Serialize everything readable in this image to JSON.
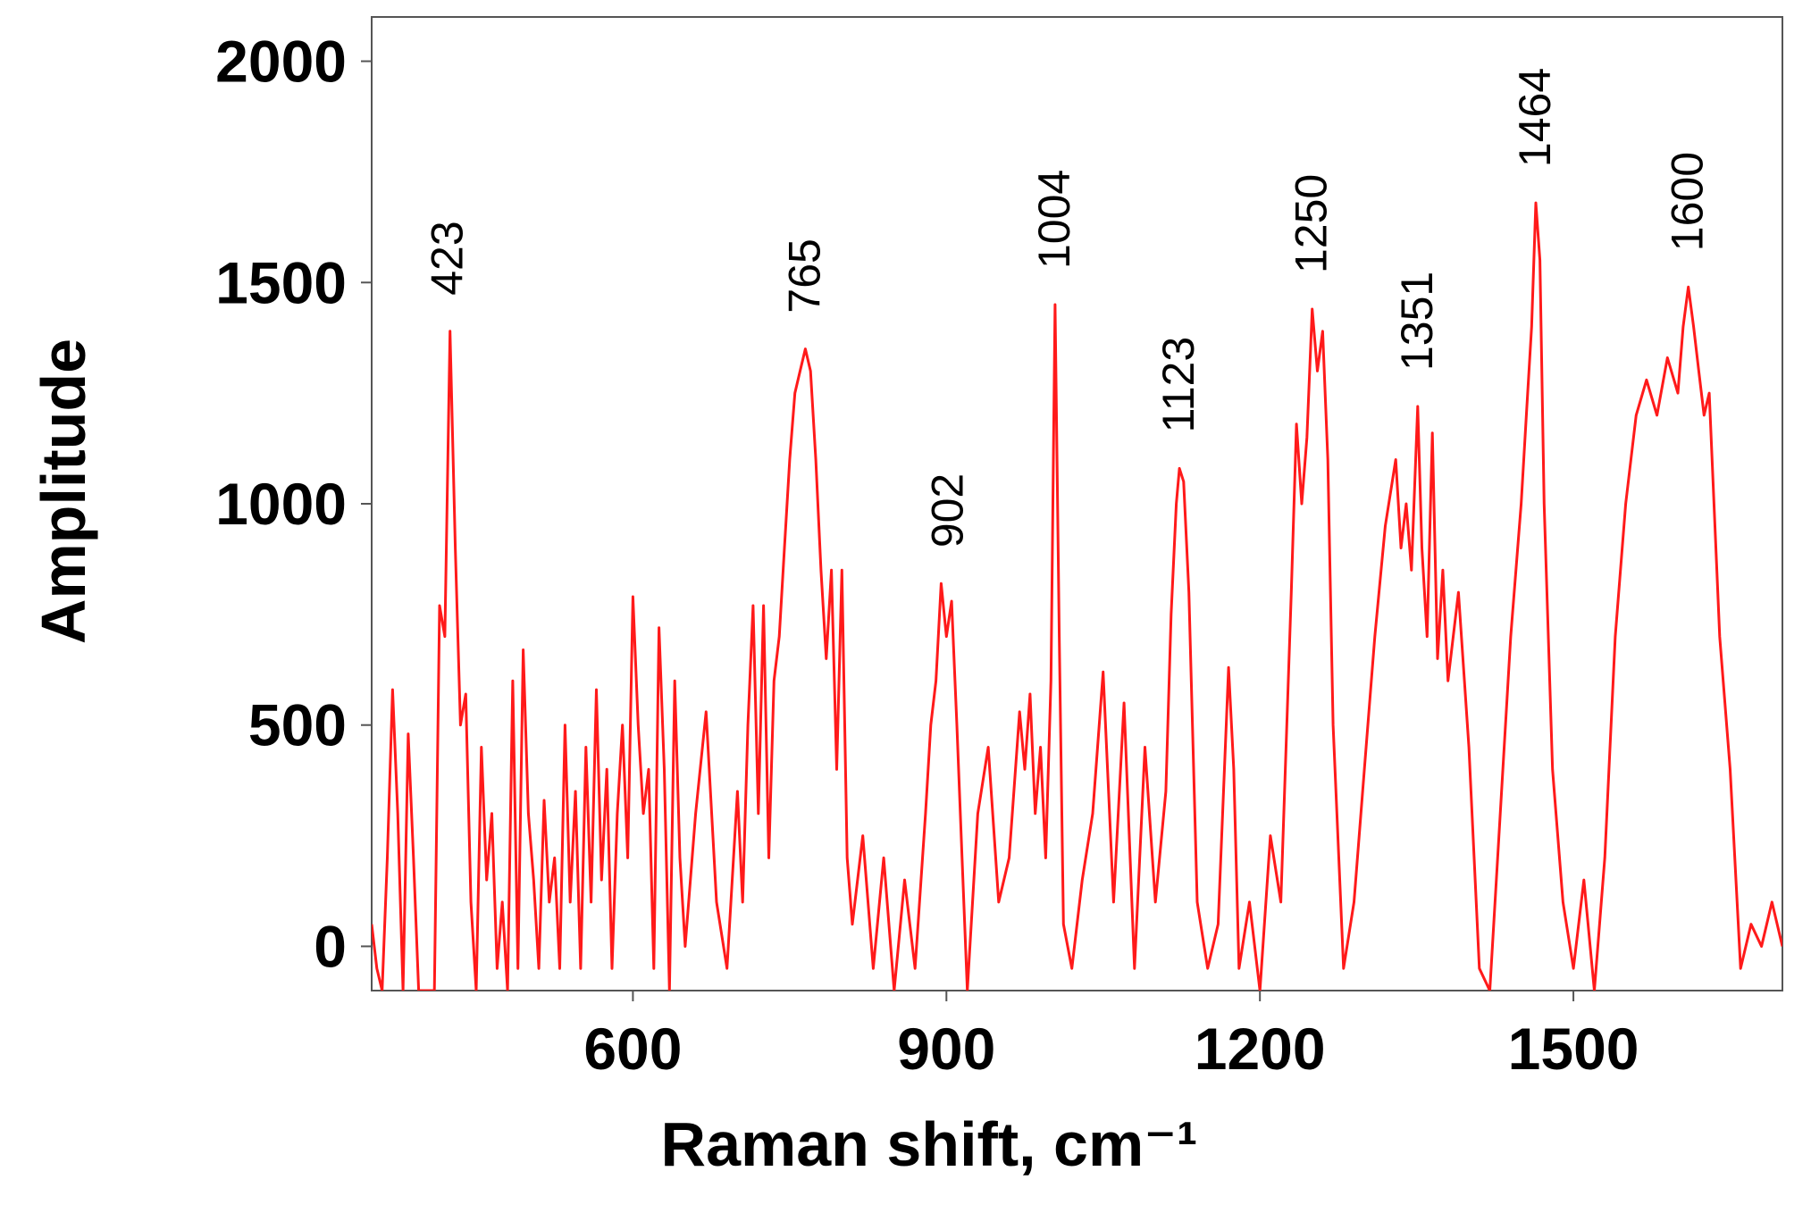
{
  "chart_data": {
    "type": "line",
    "xlabel": "Raman shift, cm⁻¹",
    "ylabel": "Amplitude",
    "xlim": [
      350,
      1700
    ],
    "ylim": [
      -100,
      2100
    ],
    "xticks": [
      600,
      900,
      1200,
      1500
    ],
    "yticks": [
      0,
      500,
      1000,
      1500,
      2000
    ],
    "series": [
      {
        "color": "#ff1a1a",
        "x": [
          350,
          355,
          360,
          365,
          370,
          375,
          380,
          385,
          390,
          395,
          400,
          410,
          415,
          420,
          425,
          430,
          435,
          440,
          445,
          450,
          455,
          460,
          465,
          470,
          475,
          480,
          485,
          490,
          495,
          500,
          505,
          510,
          515,
          520,
          525,
          530,
          535,
          540,
          545,
          550,
          555,
          560,
          565,
          570,
          575,
          580,
          585,
          590,
          595,
          600,
          605,
          610,
          615,
          620,
          625,
          630,
          635,
          640,
          645,
          650,
          660,
          670,
          680,
          690,
          700,
          705,
          710,
          715,
          720,
          725,
          730,
          735,
          740,
          745,
          750,
          755,
          760,
          765,
          770,
          775,
          780,
          785,
          790,
          795,
          800,
          805,
          810,
          820,
          830,
          840,
          850,
          860,
          870,
          880,
          885,
          890,
          895,
          900,
          905,
          910,
          915,
          920,
          930,
          940,
          950,
          960,
          970,
          975,
          980,
          985,
          990,
          995,
          1000,
          1004,
          1008,
          1012,
          1020,
          1030,
          1040,
          1050,
          1060,
          1070,
          1080,
          1090,
          1100,
          1110,
          1115,
          1120,
          1123,
          1127,
          1132,
          1140,
          1150,
          1160,
          1170,
          1175,
          1180,
          1190,
          1200,
          1210,
          1220,
          1230,
          1235,
          1240,
          1245,
          1250,
          1255,
          1260,
          1265,
          1270,
          1280,
          1290,
          1300,
          1310,
          1320,
          1330,
          1335,
          1340,
          1345,
          1351,
          1355,
          1360,
          1365,
          1370,
          1375,
          1380,
          1390,
          1400,
          1410,
          1420,
          1430,
          1440,
          1450,
          1455,
          1460,
          1464,
          1468,
          1472,
          1480,
          1490,
          1500,
          1510,
          1520,
          1530,
          1540,
          1550,
          1560,
          1570,
          1580,
          1590,
          1600,
          1605,
          1610,
          1615,
          1620,
          1625,
          1630,
          1640,
          1650,
          1660,
          1670,
          1680,
          1690,
          1700
        ],
        "values": [
          50,
          -50,
          -100,
          200,
          580,
          300,
          -100,
          480,
          200,
          -100,
          -100,
          -100,
          770,
          700,
          1390,
          900,
          500,
          570,
          100,
          -100,
          450,
          150,
          300,
          -50,
          100,
          -100,
          600,
          -50,
          670,
          300,
          150,
          -50,
          330,
          100,
          200,
          -50,
          500,
          100,
          350,
          -50,
          450,
          100,
          580,
          150,
          400,
          -50,
          300,
          500,
          200,
          790,
          500,
          300,
          400,
          -50,
          720,
          400,
          -100,
          600,
          200,
          0,
          300,
          530,
          100,
          -50,
          350,
          100,
          500,
          770,
          300,
          770,
          200,
          600,
          700,
          900,
          1100,
          1250,
          1300,
          1350,
          1300,
          1100,
          850,
          650,
          850,
          400,
          850,
          200,
          50,
          250,
          -50,
          200,
          -100,
          150,
          -50,
          300,
          500,
          600,
          820,
          700,
          780,
          500,
          200,
          -100,
          300,
          450,
          100,
          200,
          530,
          400,
          570,
          300,
          450,
          200,
          600,
          1450,
          700,
          50,
          -50,
          150,
          300,
          620,
          100,
          550,
          -50,
          450,
          100,
          350,
          750,
          1000,
          1080,
          1050,
          800,
          100,
          -50,
          50,
          630,
          400,
          -50,
          100,
          -100,
          250,
          100,
          800,
          1180,
          1000,
          1150,
          1440,
          1300,
          1390,
          1100,
          500,
          -50,
          100,
          400,
          700,
          950,
          1100,
          900,
          1000,
          850,
          1220,
          900,
          700,
          1160,
          650,
          850,
          600,
          800,
          450,
          -50,
          -100,
          300,
          700,
          1000,
          1200,
          1400,
          1680,
          1550,
          1000,
          400,
          100,
          -50,
          150,
          -100,
          200,
          700,
          1000,
          1200,
          1280,
          1200,
          1330,
          1250,
          1400,
          1490,
          1400,
          1300,
          1200,
          1250,
          700,
          400,
          -50,
          50,
          0,
          100,
          0
        ]
      }
    ],
    "annotations": [
      {
        "text": "423",
        "x": 423,
        "y": 1390
      },
      {
        "text": "765",
        "x": 765,
        "y": 1350
      },
      {
        "text": "902",
        "x": 902,
        "y": 820
      },
      {
        "text": "1004",
        "x": 1004,
        "y": 1450
      },
      {
        "text": "1123",
        "x": 1123,
        "y": 1080
      },
      {
        "text": "1250",
        "x": 1250,
        "y": 1440
      },
      {
        "text": "1351",
        "x": 1351,
        "y": 1220
      },
      {
        "text": "1464",
        "x": 1464,
        "y": 1680
      },
      {
        "text": "1600",
        "x": 1610,
        "y": 1490
      }
    ]
  }
}
